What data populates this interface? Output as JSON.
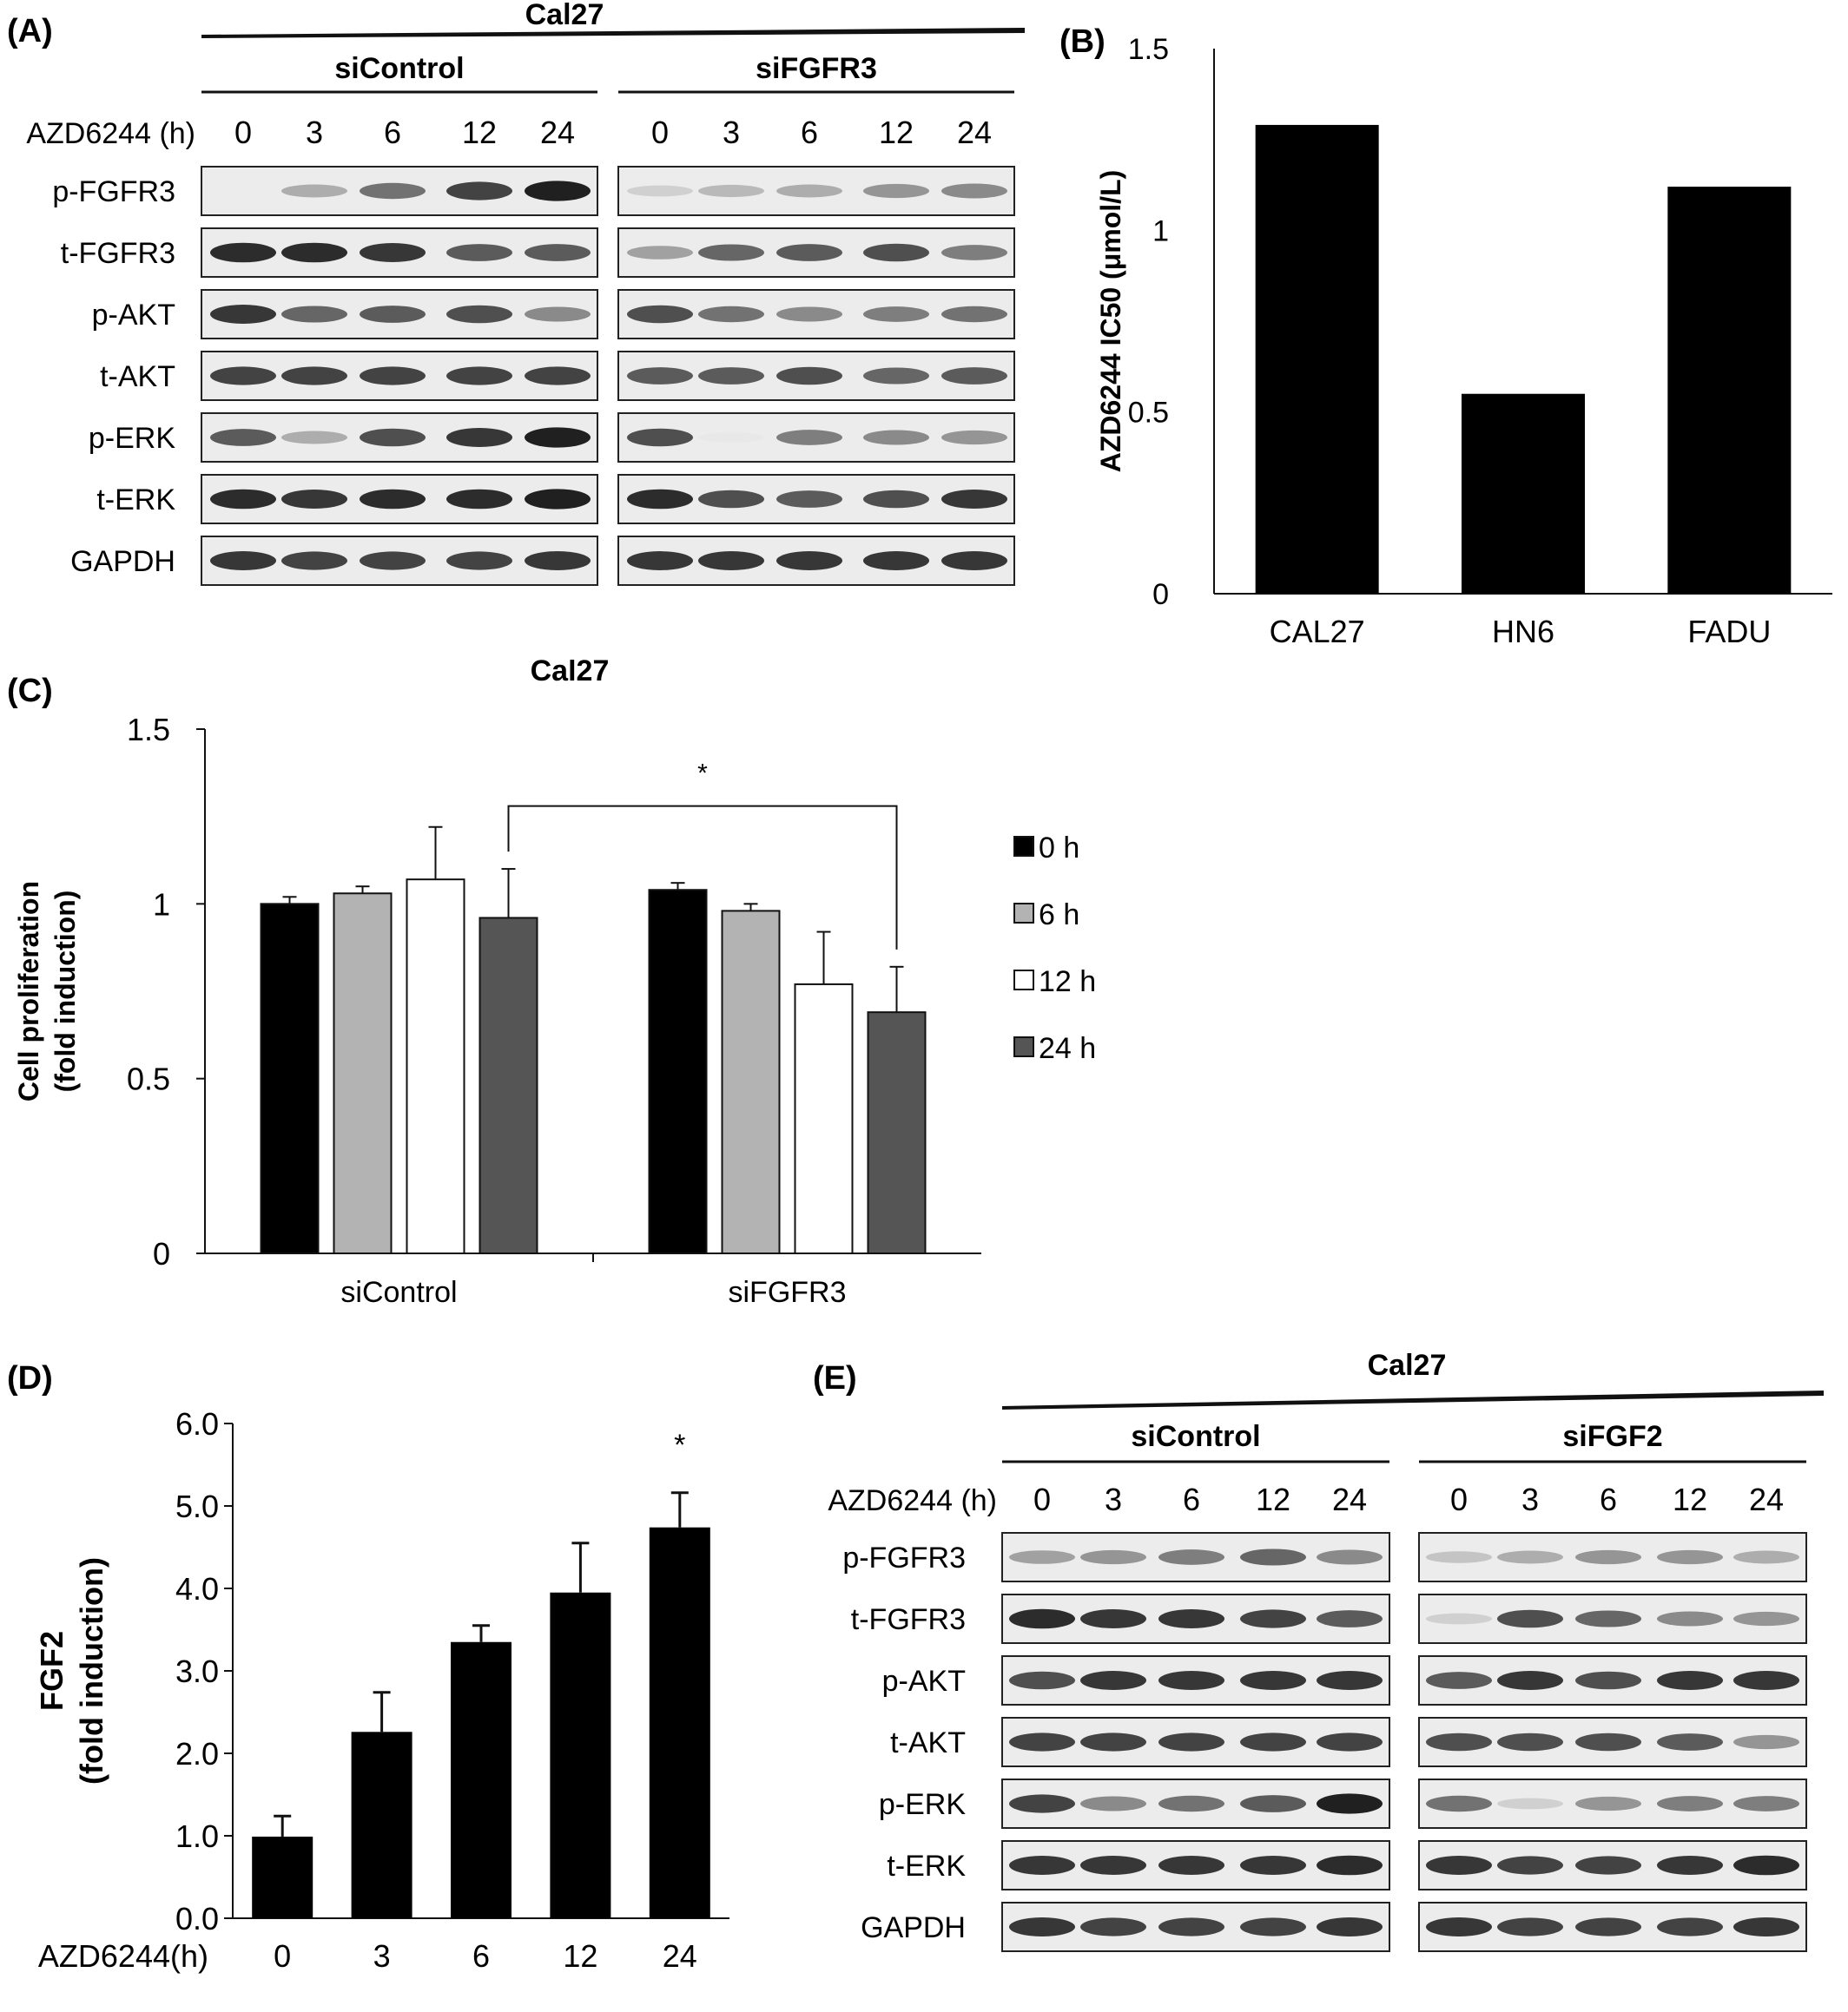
{
  "panelA": {
    "label": "(A)",
    "cell_line": "Cal27",
    "groups": [
      "siControl",
      "siFGFR3"
    ],
    "time_label": "AZD6244 (h)",
    "times": [
      "0",
      "3",
      "6",
      "12",
      "24"
    ],
    "blots": [
      "p-FGFR3",
      "t-FGFR3",
      "p-AKT",
      "t-AKT",
      "p-ERK",
      "t-ERK",
      "GAPDH"
    ],
    "band_intensity": [
      [
        [
          0.0,
          0.35,
          0.6,
          0.8,
          0.95
        ],
        [
          0.2,
          0.3,
          0.35,
          0.45,
          0.5
        ]
      ],
      [
        [
          0.9,
          0.9,
          0.85,
          0.7,
          0.7
        ],
        [
          0.4,
          0.65,
          0.7,
          0.75,
          0.55
        ]
      ],
      [
        [
          0.85,
          0.65,
          0.7,
          0.75,
          0.5
        ],
        [
          0.75,
          0.6,
          0.5,
          0.55,
          0.6
        ]
      ],
      [
        [
          0.8,
          0.8,
          0.8,
          0.8,
          0.8
        ],
        [
          0.7,
          0.7,
          0.75,
          0.65,
          0.7
        ]
      ],
      [
        [
          0.7,
          0.35,
          0.75,
          0.85,
          0.95
        ],
        [
          0.75,
          0.1,
          0.55,
          0.5,
          0.45
        ]
      ],
      [
        [
          0.9,
          0.85,
          0.9,
          0.9,
          0.95
        ],
        [
          0.9,
          0.75,
          0.7,
          0.75,
          0.85
        ]
      ],
      [
        [
          0.85,
          0.8,
          0.8,
          0.8,
          0.85
        ],
        [
          0.85,
          0.85,
          0.85,
          0.85,
          0.85
        ]
      ]
    ]
  },
  "panelE": {
    "label": "(E)",
    "cell_line": "Cal27",
    "groups": [
      "siControl",
      "siFGF2"
    ],
    "time_label": "AZD6244 (h)",
    "times": [
      "0",
      "3",
      "6",
      "12",
      "24"
    ],
    "blots": [
      "p-FGFR3",
      "t-FGFR3",
      "p-AKT",
      "t-AKT",
      "p-ERK",
      "t-ERK",
      "GAPDH"
    ],
    "band_intensity": [
      [
        [
          0.4,
          0.45,
          0.55,
          0.65,
          0.5
        ],
        [
          0.25,
          0.35,
          0.45,
          0.45,
          0.35
        ]
      ],
      [
        [
          0.9,
          0.85,
          0.85,
          0.8,
          0.7
        ],
        [
          0.2,
          0.75,
          0.65,
          0.5,
          0.45
        ]
      ],
      [
        [
          0.75,
          0.85,
          0.85,
          0.85,
          0.85
        ],
        [
          0.7,
          0.85,
          0.75,
          0.85,
          0.85
        ]
      ],
      [
        [
          0.8,
          0.8,
          0.8,
          0.8,
          0.8
        ],
        [
          0.75,
          0.75,
          0.75,
          0.7,
          0.45
        ]
      ],
      [
        [
          0.8,
          0.5,
          0.6,
          0.7,
          0.95
        ],
        [
          0.6,
          0.2,
          0.45,
          0.55,
          0.55
        ]
      ],
      [
        [
          0.85,
          0.85,
          0.85,
          0.85,
          0.9
        ],
        [
          0.85,
          0.8,
          0.8,
          0.85,
          0.9
        ]
      ],
      [
        [
          0.85,
          0.8,
          0.8,
          0.8,
          0.85
        ],
        [
          0.85,
          0.8,
          0.8,
          0.8,
          0.85
        ]
      ]
    ]
  },
  "chart_data": [
    {
      "id": "B",
      "label": "(B)",
      "type": "bar",
      "categories": [
        "CAL27",
        "HN6",
        "FADU"
      ],
      "values": [
        1.29,
        0.55,
        1.12
      ],
      "ylabel": "AZD6244 IC50 (μmol/L)",
      "ylim": [
        0,
        1.5
      ],
      "yticks": [
        "0",
        "0.5",
        "1",
        "1.5"
      ],
      "colors": [
        "#000000"
      ]
    },
    {
      "id": "C",
      "label": "(C)",
      "type": "bar",
      "title": "Cal27",
      "categories": [
        "siControl",
        "siFGFR3"
      ],
      "series": [
        {
          "name": "0 h",
          "values": [
            1.0,
            1.04
          ],
          "errors": [
            0.02,
            0.02
          ],
          "color": "#000000"
        },
        {
          "name": "6 h",
          "values": [
            1.03,
            0.98
          ],
          "errors": [
            0.02,
            0.02
          ],
          "color": "#b3b3b3"
        },
        {
          "name": "12 h",
          "values": [
            1.07,
            0.77
          ],
          "errors": [
            0.15,
            0.15
          ],
          "color": "#ffffff"
        },
        {
          "name": "24 h",
          "values": [
            0.96,
            0.69
          ],
          "errors": [
            0.14,
            0.13
          ],
          "color": "#555555"
        }
      ],
      "ylabel": "Cell proliferation (fold induction)",
      "ylabel_lines": [
        "Cell proliferation",
        "(fold induction)"
      ],
      "ylim": [
        0,
        1.5
      ],
      "yticks": [
        "0",
        "0.5",
        "1",
        "1.5"
      ],
      "legend": "right",
      "significance": "*"
    },
    {
      "id": "D",
      "label": "(D)",
      "type": "bar",
      "categories": [
        "0",
        "3",
        "6",
        "12",
        "24"
      ],
      "values": [
        0.99,
        2.26,
        3.35,
        3.95,
        4.74
      ],
      "errors": [
        0.25,
        0.48,
        0.2,
        0.6,
        0.42
      ],
      "xlabel": "AZD6244(h)",
      "ylabel": "FGF2 (fold induction)",
      "ylabel_lines": [
        "FGF2",
        "(fold induction)"
      ],
      "ylim": [
        0,
        6
      ],
      "yticks": [
        "0.0",
        "1.0",
        "2.0",
        "3.0",
        "4.0",
        "5.0",
        "6.0"
      ],
      "significance": "*",
      "colors": [
        "#000000"
      ]
    }
  ]
}
